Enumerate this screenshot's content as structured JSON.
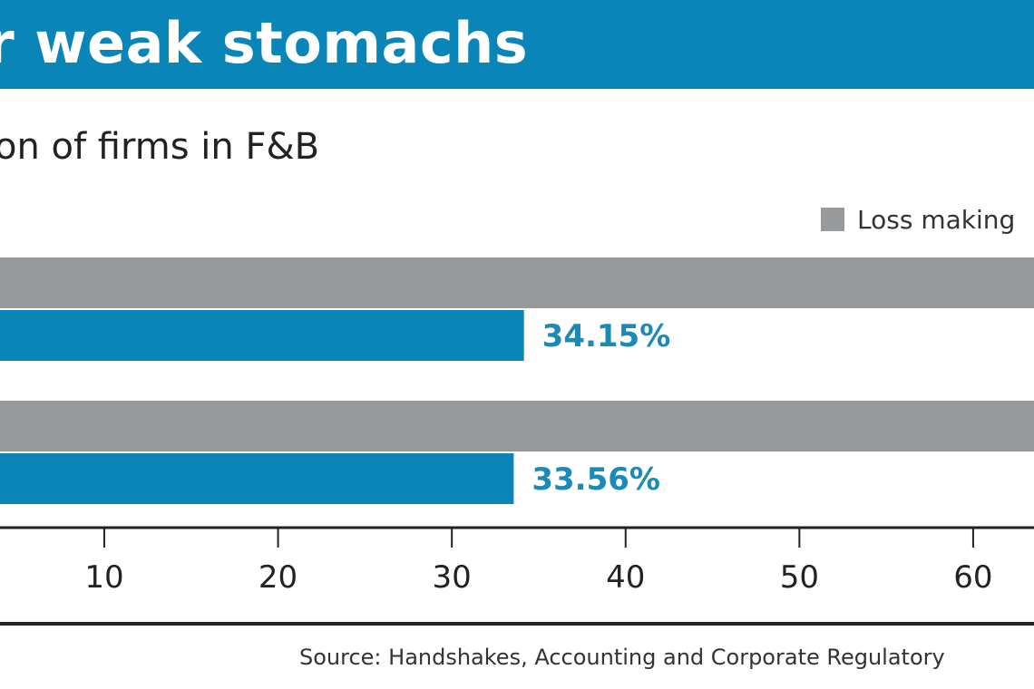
{
  "title": "or weak stomachs",
  "subtitle": "on of firms in F&B",
  "source": "Source: Handshakes, Accounting and Corporate Regulatory",
  "colors": {
    "brand_blue": "#0a85b8",
    "loss_gray": "#98999b",
    "axis": "#222222",
    "label_blue": "#1a8ab8"
  },
  "chart_data": {
    "type": "bar",
    "orientation": "horizontal",
    "series": [
      {
        "name": "Loss making",
        "color": "#98999b",
        "values": [
          null,
          null
        ]
      },
      {
        "color": "#0a85b8",
        "values": [
          34.15,
          33.56
        ]
      }
    ],
    "data_labels": [
      "34.15%",
      "33.56%"
    ],
    "x_ticks": [
      10,
      20,
      30,
      40,
      50,
      60
    ],
    "xlim": [
      4,
      63.5
    ],
    "legend": "top-right",
    "grid": false
  }
}
